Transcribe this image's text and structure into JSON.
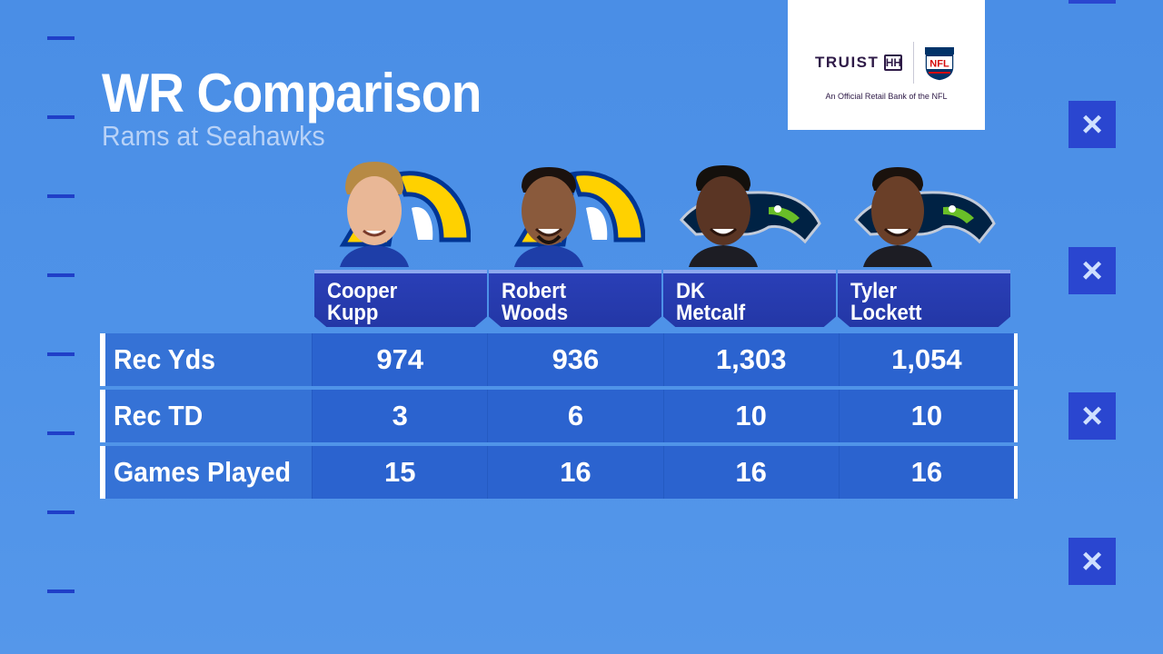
{
  "header": {
    "title": "WR Comparison",
    "subtitle": "Rams at Seahawks"
  },
  "sponsor": {
    "name": "TRUIST",
    "mark": "HH",
    "league_logo_text": "NFL",
    "tagline": "An Official Retail Bank of the NFL"
  },
  "players": [
    {
      "first": "Cooper",
      "last": "Kupp",
      "team_logo": "rams-logo",
      "team_color": "#ffd100"
    },
    {
      "first": "Robert",
      "last": "Woods",
      "team_logo": "rams-logo",
      "team_color": "#ffd100"
    },
    {
      "first": "DK",
      "last": "Metcalf",
      "team_logo": "seahawks-logo",
      "team_color": "#002244"
    },
    {
      "first": "Tyler",
      "last": "Lockett",
      "team_logo": "seahawks-logo",
      "team_color": "#002244"
    }
  ],
  "stats": [
    {
      "label": "Rec Yds",
      "values": [
        "974",
        "936",
        "1,303",
        "1,054"
      ]
    },
    {
      "label": "Rec TD",
      "values": [
        "3",
        "6",
        "10",
        "10"
      ]
    },
    {
      "label": "Games Played",
      "values": [
        "15",
        "16",
        "16",
        "16"
      ]
    }
  ],
  "decor": {
    "x_icon": "×"
  }
}
